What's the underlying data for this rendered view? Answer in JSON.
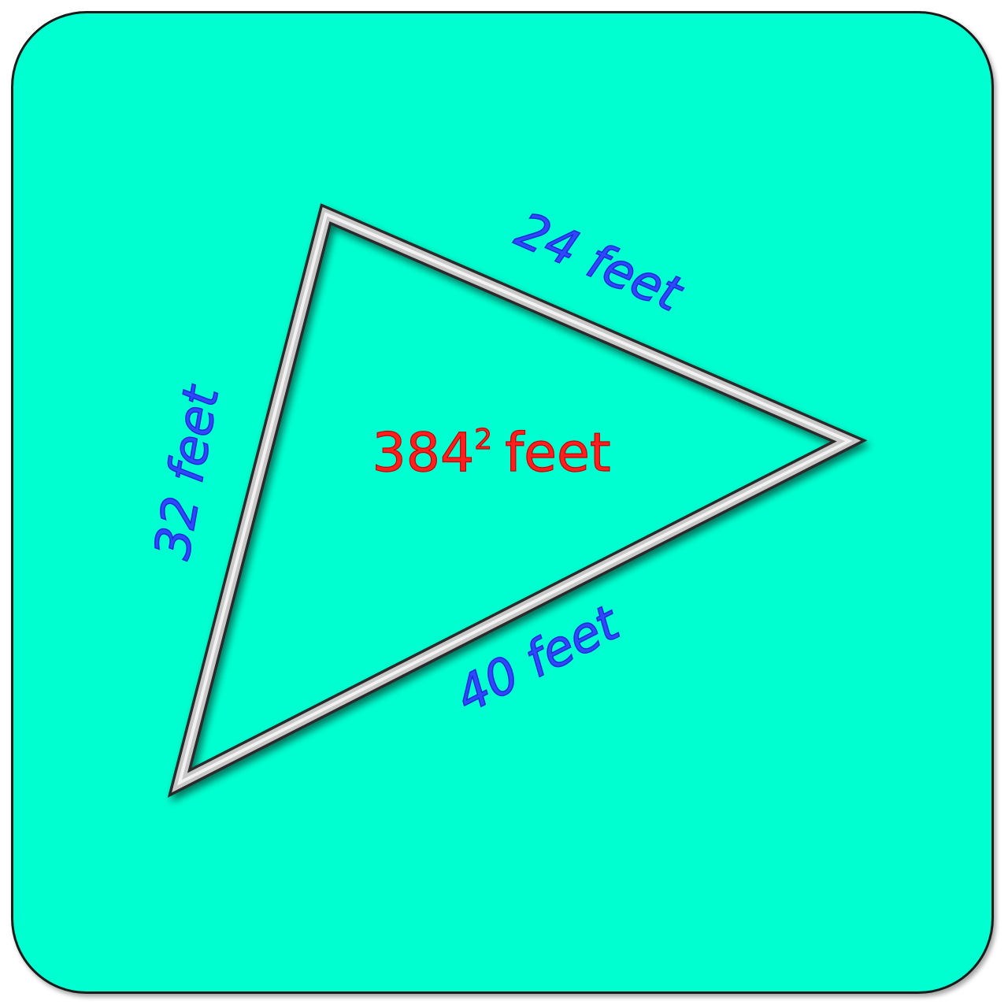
{
  "figure": {
    "side_top": "24 feet",
    "side_left": "32 feet",
    "side_bottom": "40 feet",
    "area_number": "384",
    "area_exponent": "2",
    "area_unit": "feet"
  },
  "colors": {
    "background": "#00ffd0",
    "side_labels": "#2f48ff",
    "area_label": "#ff1f1f",
    "triangle_edge": "#c8c8c8"
  }
}
